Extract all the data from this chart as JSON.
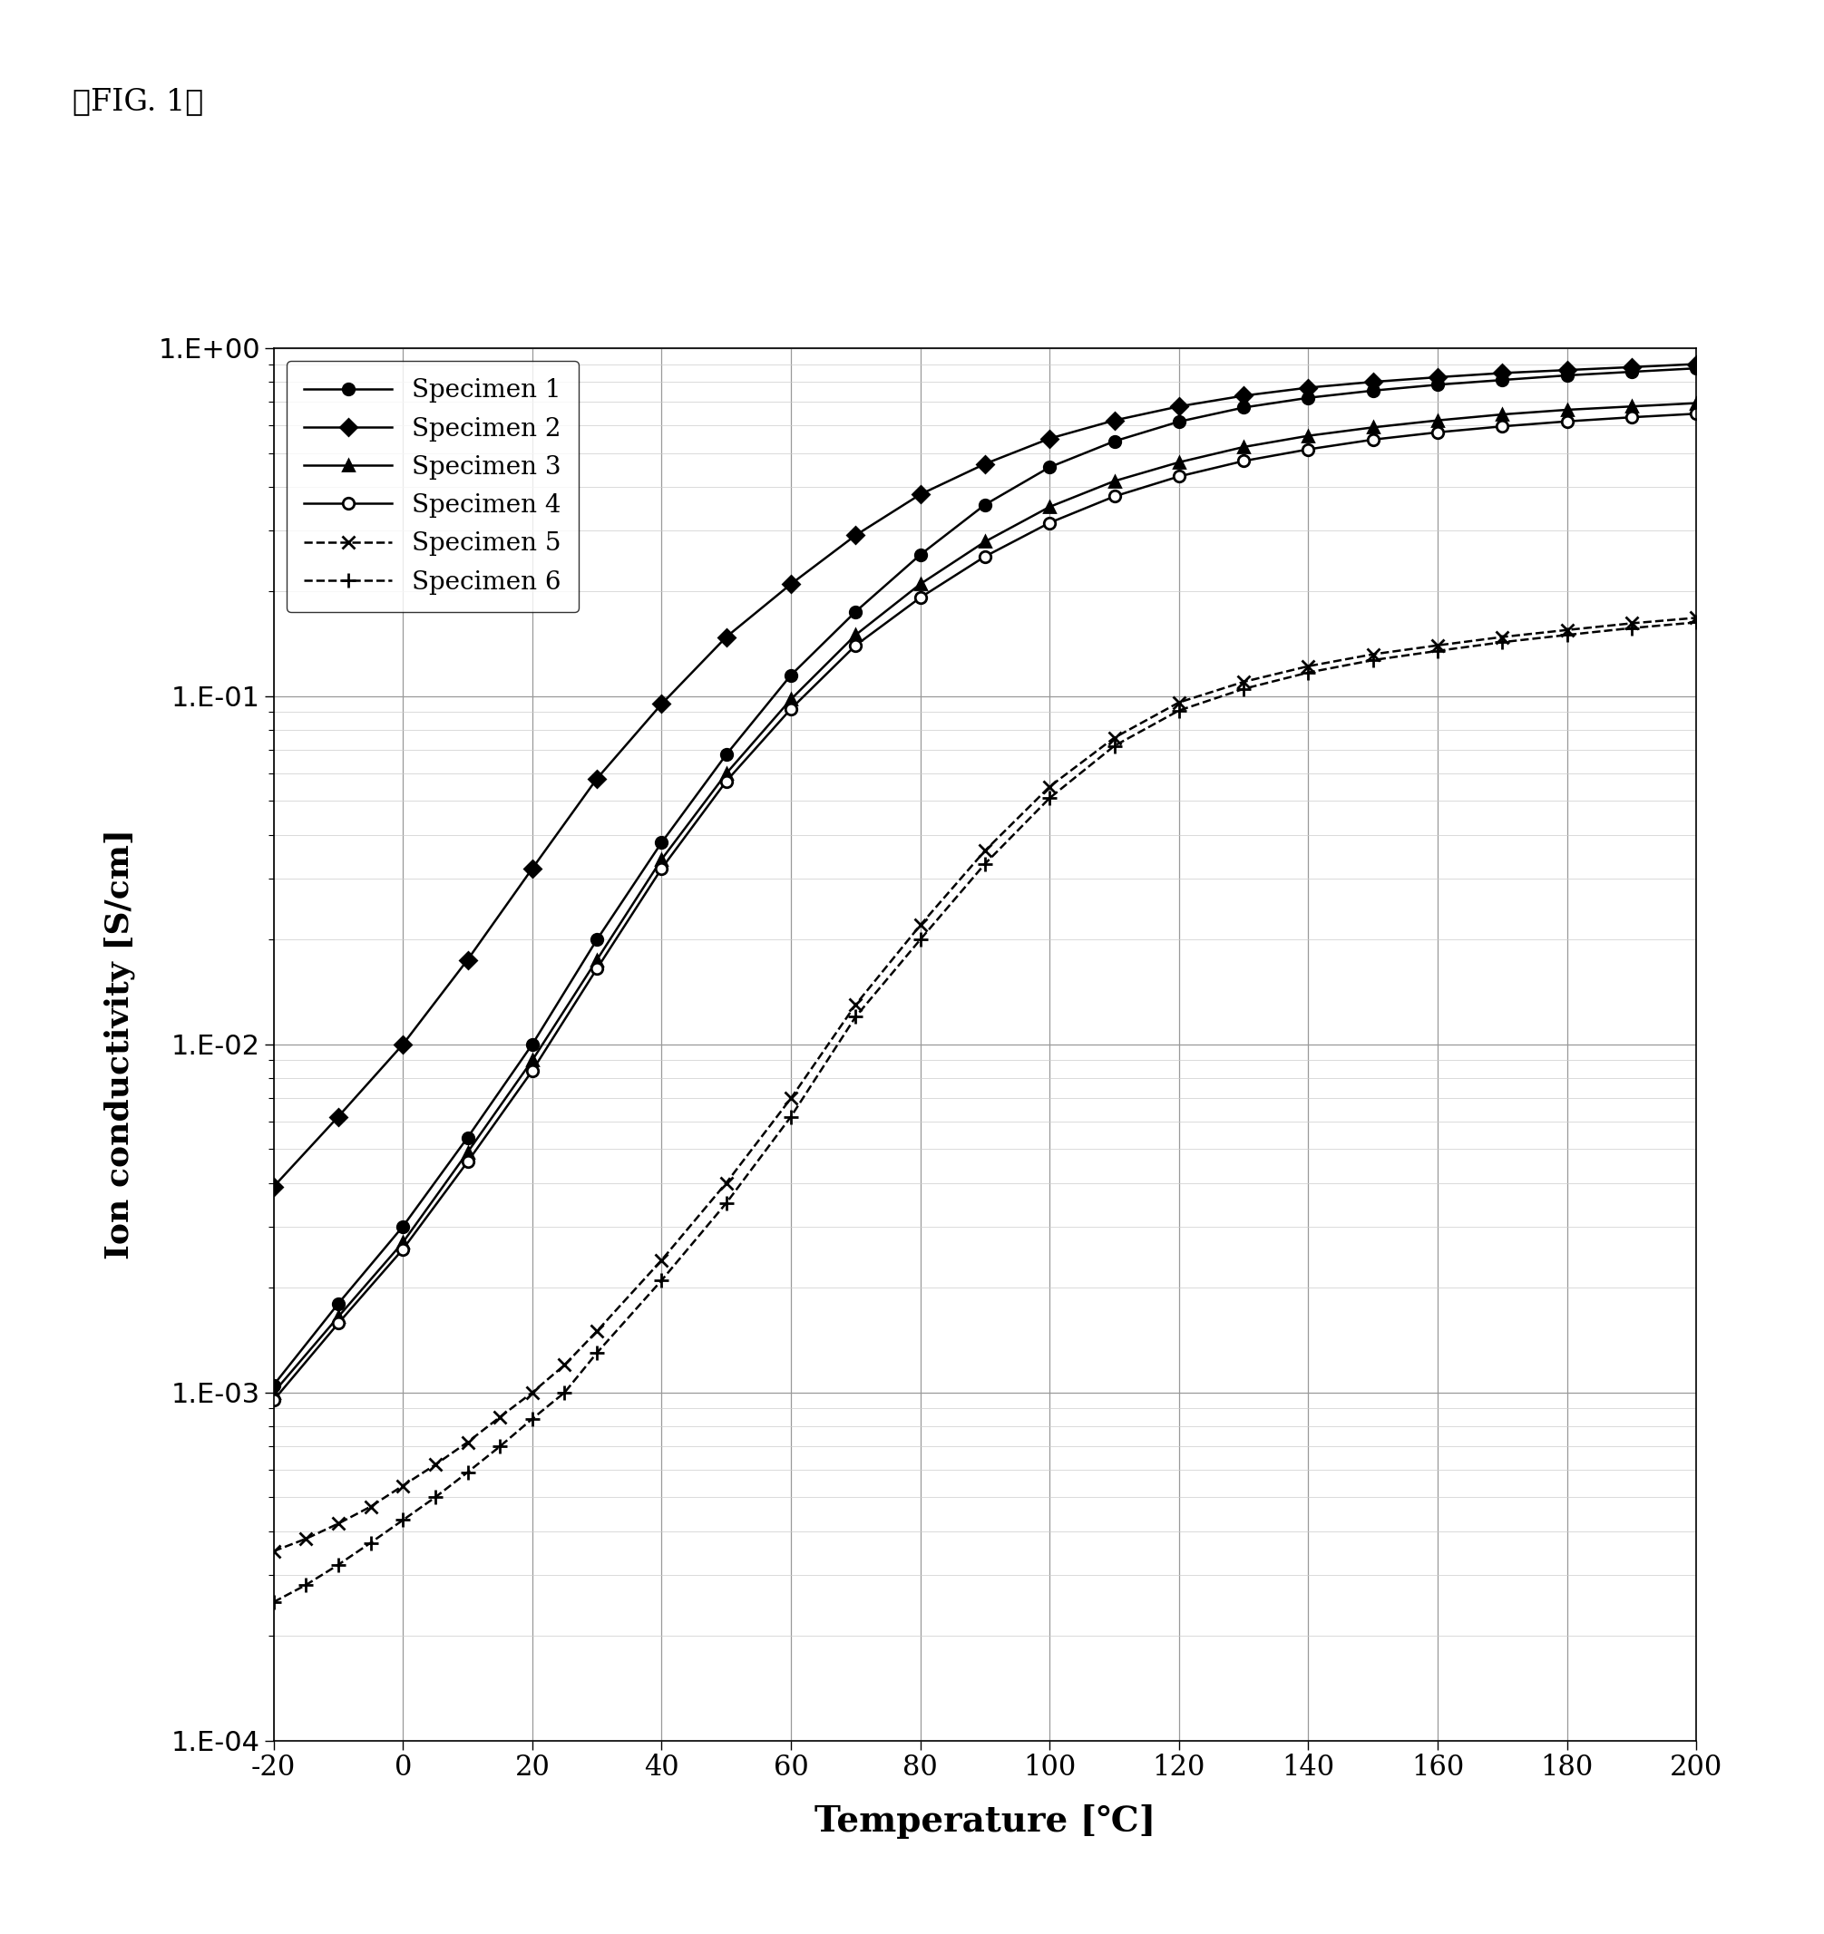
{
  "title_label": "【FIG. 1】",
  "xlabel": "Temperature [℃]",
  "ylabel": "Ion conductivity [S/cm]",
  "xlim": [
    -20,
    200
  ],
  "ylim_log": [
    -4,
    0
  ],
  "xticks": [
    -20,
    0,
    20,
    40,
    60,
    80,
    100,
    120,
    140,
    160,
    180,
    200
  ],
  "series": [
    {
      "name": "Specimen 1",
      "color": "#000000",
      "linestyle": "-",
      "marker": "o",
      "marker_fill": "black",
      "marker_size": 9,
      "x": [
        -20,
        -10,
        0,
        10,
        20,
        30,
        40,
        50,
        60,
        70,
        80,
        90,
        100,
        110,
        120,
        130,
        140,
        150,
        160,
        170,
        180,
        190,
        200
      ],
      "y": [
        0.00105,
        0.0018,
        0.003,
        0.0054,
        0.01,
        0.02,
        0.038,
        0.068,
        0.115,
        0.175,
        0.255,
        0.355,
        0.455,
        0.54,
        0.615,
        0.675,
        0.72,
        0.755,
        0.785,
        0.81,
        0.835,
        0.855,
        0.875
      ]
    },
    {
      "name": "Specimen 2",
      "color": "#000000",
      "linestyle": "-",
      "marker": "D",
      "marker_fill": "black",
      "marker_size": 9,
      "x": [
        -20,
        -10,
        0,
        10,
        20,
        30,
        40,
        50,
        60,
        70,
        80,
        90,
        100,
        110,
        120,
        130,
        140,
        150,
        160,
        170,
        180,
        190,
        200
      ],
      "y": [
        0.0039,
        0.0062,
        0.01,
        0.0175,
        0.032,
        0.058,
        0.095,
        0.148,
        0.21,
        0.29,
        0.38,
        0.465,
        0.55,
        0.62,
        0.68,
        0.73,
        0.77,
        0.8,
        0.825,
        0.848,
        0.865,
        0.882,
        0.9
      ]
    },
    {
      "name": "Specimen 3",
      "color": "#000000",
      "linestyle": "-",
      "marker": "^",
      "marker_fill": "black",
      "marker_size": 9,
      "x": [
        -20,
        -10,
        0,
        10,
        20,
        30,
        40,
        50,
        60,
        70,
        80,
        90,
        100,
        110,
        120,
        130,
        140,
        150,
        160,
        170,
        180,
        190,
        200
      ],
      "y": [
        0.001,
        0.00165,
        0.0027,
        0.0049,
        0.009,
        0.0175,
        0.034,
        0.06,
        0.098,
        0.15,
        0.21,
        0.278,
        0.35,
        0.415,
        0.47,
        0.52,
        0.56,
        0.592,
        0.62,
        0.645,
        0.665,
        0.68,
        0.695
      ]
    },
    {
      "name": "Specimen 4",
      "color": "#000000",
      "linestyle": "-",
      "marker": "o",
      "marker_fill": "white",
      "marker_size": 9,
      "x": [
        -20,
        -10,
        0,
        10,
        20,
        30,
        40,
        50,
        60,
        70,
        80,
        90,
        100,
        110,
        120,
        130,
        140,
        150,
        160,
        170,
        180,
        190,
        200
      ],
      "y": [
        0.00095,
        0.00158,
        0.00258,
        0.0046,
        0.0084,
        0.0165,
        0.032,
        0.057,
        0.092,
        0.14,
        0.192,
        0.252,
        0.315,
        0.375,
        0.428,
        0.474,
        0.512,
        0.546,
        0.573,
        0.596,
        0.616,
        0.633,
        0.648
      ]
    },
    {
      "name": "Specimen 5",
      "color": "#000000",
      "linestyle": "--",
      "marker": "x",
      "marker_fill": "black",
      "marker_size": 10,
      "x": [
        -20,
        -15,
        -10,
        -5,
        0,
        5,
        10,
        15,
        20,
        25,
        30,
        40,
        50,
        60,
        70,
        80,
        90,
        100,
        110,
        120,
        130,
        140,
        150,
        160,
        170,
        180,
        190,
        200
      ],
      "y": [
        0.00035,
        0.00038,
        0.00042,
        0.00047,
        0.00054,
        0.00062,
        0.00072,
        0.00085,
        0.001,
        0.0012,
        0.0015,
        0.0024,
        0.004,
        0.007,
        0.013,
        0.022,
        0.036,
        0.055,
        0.076,
        0.096,
        0.11,
        0.122,
        0.132,
        0.14,
        0.148,
        0.155,
        0.162,
        0.168
      ]
    },
    {
      "name": "Specimen 6",
      "color": "#000000",
      "linestyle": "--",
      "marker": "+",
      "marker_fill": "black",
      "marker_size": 11,
      "x": [
        -20,
        -15,
        -10,
        -5,
        0,
        5,
        10,
        15,
        20,
        25,
        30,
        40,
        50,
        60,
        70,
        80,
        90,
        100,
        110,
        120,
        130,
        140,
        150,
        160,
        170,
        180,
        190,
        200
      ],
      "y": [
        0.00025,
        0.00028,
        0.00032,
        0.00037,
        0.00043,
        0.0005,
        0.00059,
        0.0007,
        0.00084,
        0.001,
        0.0013,
        0.0021,
        0.0035,
        0.0062,
        0.012,
        0.02,
        0.033,
        0.051,
        0.072,
        0.091,
        0.105,
        0.117,
        0.127,
        0.135,
        0.143,
        0.15,
        0.157,
        0.163
      ]
    }
  ],
  "background_color": "#ffffff",
  "grid_color": "#999999",
  "minor_grid_color": "#cccccc"
}
